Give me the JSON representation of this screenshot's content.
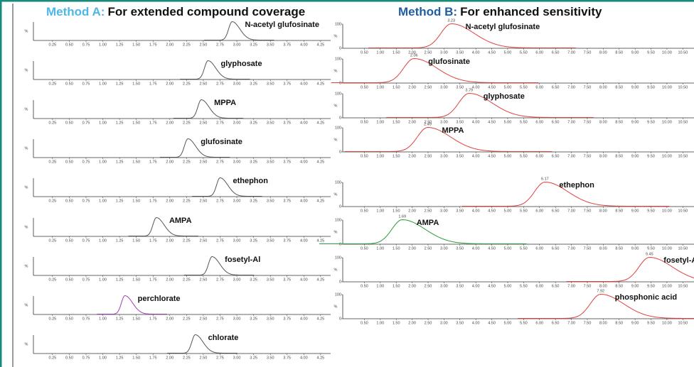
{
  "panels": [
    {
      "method": "Method A:",
      "title": "For extended compound coverage",
      "method_color": "#4db8e8",
      "ylabel": "%",
      "xlim": [
        0.05,
        4.4
      ],
      "xticks": [
        0.25,
        {
          "value": 0.5,
          "label": "0.50"
        },
        0.75,
        {
          "value": 1,
          "label": "1.00"
        },
        1.25,
        {
          "value": 1.5,
          "label": "1.50"
        },
        1.75,
        {
          "value": 2,
          "label": "2.00"
        },
        2.25,
        {
          "value": 2.5,
          "label": "2.50"
        },
        2.75,
        {
          "value": 3,
          "label": "3.00"
        },
        3.25,
        {
          "value": 3.5,
          "label": "3.50"
        },
        3.75,
        {
          "value": 4,
          "label": "4.00"
        },
        4.25
      ],
      "traces": [
        {
          "name": "N-acetyl glufosinate",
          "rt": 2.93,
          "color": "#555555"
        },
        {
          "name": "glyphosate",
          "rt": 2.57,
          "color": "#555555"
        },
        {
          "name": "MPPA",
          "rt": 2.47,
          "color": "#555555"
        },
        {
          "name": "glufosinate",
          "rt": 2.27,
          "color": "#555555"
        },
        {
          "name": "ethephon",
          "rt": 2.75,
          "color": "#555555"
        },
        {
          "name": "AMPA",
          "rt": 1.8,
          "color": "#555555"
        },
        {
          "name": "fosetyl-Al",
          "rt": 2.63,
          "color": "#555555"
        },
        {
          "name": "perchlorate",
          "rt": 1.33,
          "color": "#a040b0"
        },
        {
          "name": "chlorate",
          "rt": 2.38,
          "color": "#555555"
        }
      ]
    },
    {
      "method": "Method B:",
      "title": "For enhanced sensitivity",
      "method_color": "#1f5fa0",
      "ylabel": "%",
      "yticks": [
        0,
        100
      ],
      "xlim": [
        0,
        10.85
      ],
      "xticks": [
        {
          "value": 0.5,
          "label": "0.50"
        },
        {
          "value": 1,
          "label": "1.00"
        },
        {
          "value": 1.5,
          "label": "1.50"
        },
        {
          "value": 2,
          "label": "2.00"
        },
        {
          "value": 2.5,
          "label": "2.50"
        },
        {
          "value": 3,
          "label": "3.00"
        },
        {
          "value": 3.5,
          "label": "3.50"
        },
        {
          "value": 4,
          "label": "4.00"
        },
        {
          "value": 4.5,
          "label": "4.50"
        },
        {
          "value": 5,
          "label": "5.00"
        },
        {
          "value": 5.5,
          "label": "5.50"
        },
        {
          "value": 6,
          "label": "6.00"
        },
        {
          "value": 6.5,
          "label": "6.50"
        },
        {
          "value": 7,
          "label": "7.00"
        },
        {
          "value": 7.5,
          "label": "7.50"
        },
        {
          "value": 8,
          "label": "8.00"
        },
        {
          "value": 8.5,
          "label": "8.50"
        },
        {
          "value": 9,
          "label": "9.00"
        },
        {
          "value": 9.5,
          "label": "9.50"
        },
        {
          "value": 10,
          "label": "10.00"
        },
        {
          "value": 10.5,
          "label": "10.50"
        }
      ],
      "traces": [
        {
          "name": "N-acetyl glufosinate",
          "rt": 3.23,
          "color": "#e04040"
        },
        {
          "name": "glufosinate",
          "rt": 2.06,
          "color": "#e04040"
        },
        {
          "name": "glyphosate",
          "rt": 3.79,
          "color": "#e04040"
        },
        {
          "name": "MPPA",
          "rt": 2.49,
          "color": "#e04040"
        },
        {
          "name": "ethephon",
          "rt": 6.17,
          "color": "#e04040"
        },
        {
          "name": "AMPA",
          "rt": 1.69,
          "color": "#2a9a3a"
        },
        {
          "name": "fosetyl-Al",
          "rt": 9.45,
          "color": "#e04040"
        },
        {
          "name": "phosphonic acid",
          "rt": 7.92,
          "color": "#e04040"
        }
      ]
    }
  ]
}
